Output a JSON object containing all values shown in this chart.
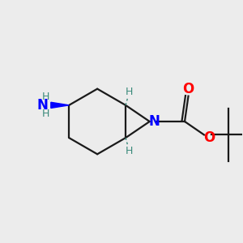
{
  "bg_color": "#ececec",
  "atom_colors": {
    "N": "#0000ff",
    "O": "#ff0000",
    "C": "#1a1a1a",
    "H": "#3a8a7a"
  },
  "bond_color": "#1a1a1a",
  "bond_lw": 1.6,
  "figsize": [
    3.0,
    3.0
  ],
  "dpi": 100
}
